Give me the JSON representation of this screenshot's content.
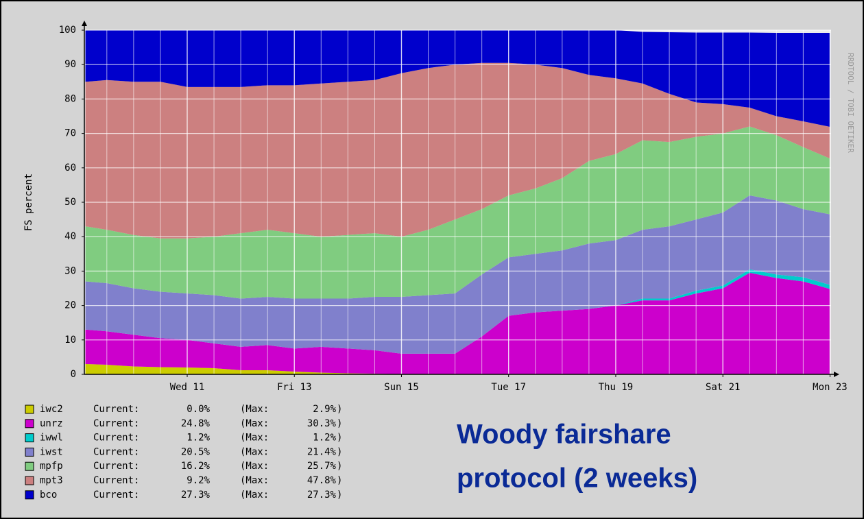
{
  "chart_data": {
    "type": "stacked_area",
    "ylabel": "FS percent",
    "watermark": "RRDTOOL / TOBI OETIKER",
    "annotations": [
      "Woody fairshare",
      "protocol (2 weeks)"
    ],
    "legend_current_label": "Current:",
    "legend_max_label": "(Max:",
    "legend_close": ")",
    "x": [
      9.1,
      9.5,
      10,
      10.5,
      11,
      11.5,
      12,
      12.5,
      13,
      13.5,
      14,
      14.5,
      15,
      15.5,
      16,
      16.5,
      17,
      17.5,
      18,
      18.5,
      19,
      19.5,
      20,
      20.5,
      21,
      21.5,
      22,
      22.5,
      23
    ],
    "xlim": [
      9.08,
      23.02
    ],
    "xticks": [
      {
        "value": 11,
        "label": "Wed 11"
      },
      {
        "value": 13,
        "label": "Fri 13"
      },
      {
        "value": 15,
        "label": "Sun 15"
      },
      {
        "value": 17,
        "label": "Tue 17"
      },
      {
        "value": 19,
        "label": "Thu 19"
      },
      {
        "value": 21,
        "label": "Sat 21"
      },
      {
        "value": 23,
        "label": "Mon 23"
      }
    ],
    "x_minor_ticks": [
      9.5,
      10,
      10.5,
      11.5,
      12,
      12.5,
      13.5,
      14,
      14.5,
      15.5,
      16,
      16.5,
      17.5,
      18,
      18.5,
      19.5,
      20,
      20.5,
      21.5,
      22,
      22.5
    ],
    "ylim": [
      0,
      100
    ],
    "yticks": [
      0,
      10,
      20,
      30,
      40,
      50,
      60,
      70,
      80,
      90,
      100
    ],
    "grid": true,
    "series": [
      {
        "name": "iwc2",
        "color": "#cccc00",
        "current_label": "0.0%",
        "max_label": "2.9%",
        "values": [
          3,
          2.8,
          2.3,
          2.1,
          2,
          1.8,
          1.2,
          1.2,
          0.8,
          0.5,
          0.3,
          0.2,
          0,
          0,
          0,
          0,
          0,
          0,
          0,
          0,
          0,
          0,
          0,
          0,
          0,
          0,
          0,
          0,
          0
        ]
      },
      {
        "name": "unrz",
        "color": "#cc00cc",
        "current_label": "24.8%",
        "max_label": "30.3%",
        "values": [
          10,
          9.7,
          9.2,
          8.4,
          8,
          7.2,
          6.8,
          7.3,
          6.7,
          7.5,
          7.2,
          6.8,
          6,
          6,
          6,
          11,
          17,
          18,
          18.5,
          19,
          20,
          21.5,
          21.5,
          23.5,
          25,
          29.5,
          28,
          27,
          24.8
        ]
      },
      {
        "name": "iwwl",
        "color": "#00cccc",
        "current_label": "1.2%",
        "max_label": "1.2%",
        "values": [
          0,
          0,
          0,
          0,
          0,
          0,
          0,
          0,
          0,
          0,
          0,
          0,
          0,
          0,
          0,
          0,
          0,
          0,
          0,
          0,
          0,
          0.5,
          0.5,
          0.8,
          0.8,
          1,
          1,
          1.2,
          1.2
        ]
      },
      {
        "name": "iwst",
        "color": "#8080cc",
        "current_label": "20.5%",
        "max_label": "21.4%",
        "values": [
          14,
          14,
          13.5,
          13.5,
          13.5,
          14,
          14,
          14,
          14.5,
          14,
          14.5,
          15.5,
          16.5,
          17,
          17.5,
          18,
          17,
          17,
          17.5,
          19,
          19,
          20,
          21,
          20.7,
          21.2,
          21.5,
          21.5,
          19.8,
          20.5
        ]
      },
      {
        "name": "mpfp",
        "color": "#80cc80",
        "current_label": "16.2%",
        "max_label": "25.7%",
        "values": [
          16,
          15.5,
          15.5,
          15.5,
          16,
          17,
          19,
          19.5,
          19,
          18,
          18.5,
          18.5,
          17.5,
          19,
          21.5,
          19,
          18,
          19,
          21,
          24,
          25,
          26,
          24.5,
          24,
          23,
          20,
          19,
          18,
          16.2
        ]
      },
      {
        "name": "mpt3",
        "color": "#cc8080",
        "current_label": "9.2%",
        "max_label": "47.8%",
        "values": [
          42,
          43.5,
          44.5,
          45.5,
          44,
          43.5,
          42.5,
          42,
          43,
          44.5,
          44.5,
          44.5,
          47.5,
          47,
          45,
          42.5,
          38.5,
          36,
          32,
          25,
          22,
          16.5,
          14,
          10,
          8.5,
          5.5,
          5.5,
          7.5,
          9.2
        ]
      },
      {
        "name": "bco",
        "color": "#0000cc",
        "current_label": "27.3%",
        "max_label": "27.3%",
        "values": [
          15,
          14.5,
          15,
          15,
          16.5,
          16.5,
          16.5,
          16,
          16,
          15.5,
          15,
          14.5,
          12.5,
          11,
          10,
          9.5,
          9.5,
          10,
          11,
          13,
          14,
          15,
          17.9,
          20.3,
          20.8,
          21.8,
          24.2,
          25.7,
          27.3
        ]
      }
    ]
  }
}
